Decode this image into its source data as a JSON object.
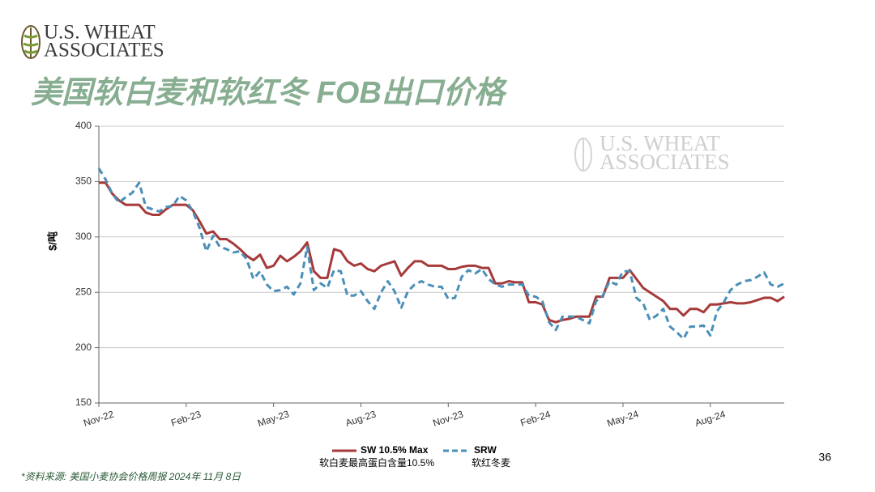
{
  "logo": {
    "line1": "U.S. WHEAT",
    "line2": "ASSOCIATES"
  },
  "chart_data": {
    "type": "line",
    "title": "美国软白麦和软红冬 FOB出口价格",
    "y_label": "$/吨",
    "categories": [
      "Nov-22",
      null,
      null,
      null,
      null,
      null,
      null,
      null,
      null,
      null,
      null,
      null,
      null,
      "Feb-23",
      null,
      null,
      null,
      null,
      null,
      null,
      null,
      null,
      null,
      null,
      null,
      null,
      "May-23",
      null,
      null,
      null,
      null,
      null,
      null,
      null,
      null,
      null,
      null,
      null,
      null,
      "Aug-23",
      null,
      null,
      null,
      null,
      null,
      null,
      null,
      null,
      null,
      null,
      null,
      null,
      "Nov-23",
      null,
      null,
      null,
      null,
      null,
      null,
      null,
      null,
      null,
      null,
      null,
      null,
      "Feb-24",
      null,
      null,
      null,
      null,
      null,
      null,
      null,
      null,
      null,
      null,
      null,
      null,
      "May-24",
      null,
      null,
      null,
      null,
      null,
      null,
      null,
      null,
      null,
      null,
      null,
      null,
      "Aug-24",
      null,
      null,
      null,
      null,
      null,
      null,
      null,
      null,
      null,
      null,
      null
    ],
    "series": [
      {
        "name": "SW 10.5% Max",
        "description": "软白麦最高蛋白含量10.5%",
        "color": "#a63a3a",
        "dashed": false,
        "values": [
          349,
          349,
          339,
          333,
          329,
          329,
          329,
          322,
          320,
          320,
          325,
          329,
          329,
          329,
          324,
          314,
          303,
          305,
          298,
          298,
          294,
          289,
          283,
          279,
          284,
          272,
          274,
          283,
          278,
          282,
          287,
          295,
          269,
          263,
          263,
          289,
          287,
          278,
          274,
          276,
          271,
          269,
          274,
          276,
          278,
          265,
          272,
          278,
          278,
          274,
          274,
          274,
          271,
          271,
          273,
          274,
          274,
          272,
          272,
          258,
          258,
          260,
          259,
          259,
          241,
          241,
          239,
          225,
          223,
          225,
          226,
          228,
          228,
          228,
          246,
          246,
          263,
          263,
          263,
          270,
          262,
          254,
          250,
          246,
          242,
          235,
          235,
          229,
          235,
          235,
          232,
          239,
          239,
          240,
          241,
          240,
          240,
          241,
          243,
          245,
          245,
          242,
          246
        ]
      },
      {
        "name": "SRW",
        "description": "软红冬麦",
        "color": "#4a8fb8",
        "dashed": true,
        "values": [
          362,
          352,
          339,
          331,
          336,
          340,
          349,
          327,
          325,
          323,
          327,
          328,
          337,
          333,
          323,
          308,
          287,
          301,
          291,
          289,
          286,
          287,
          280,
          262,
          269,
          257,
          251,
          252,
          255,
          248,
          258,
          291,
          252,
          258,
          254,
          270,
          269,
          247,
          247,
          251,
          242,
          235,
          250,
          260,
          251,
          236,
          251,
          257,
          260,
          257,
          255,
          255,
          244,
          245,
          264,
          270,
          267,
          271,
          262,
          257,
          255,
          257,
          257,
          257,
          247,
          246,
          242,
          223,
          216,
          228,
          228,
          228,
          225,
          222,
          242,
          247,
          260,
          257,
          269,
          269,
          245,
          240,
          225,
          229,
          235,
          219,
          214,
          208,
          219,
          219,
          220,
          211,
          233,
          241,
          252,
          257,
          260,
          261,
          264,
          268,
          257,
          255,
          258
        ]
      }
    ],
    "ylim": [
      150,
      400
    ],
    "yticks": [
      150,
      200,
      250,
      300,
      350,
      400
    ],
    "grid": true
  },
  "footnote": "*资料来源: 美国小麦协会价格周报 2024年 11月 8日",
  "page_number": "36"
}
